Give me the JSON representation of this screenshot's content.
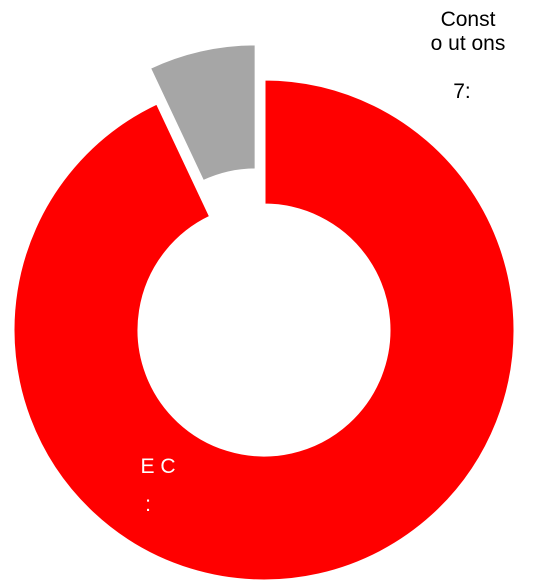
{
  "chart_data": {
    "type": "donut",
    "categories": [
      "E C",
      "Const\no ut ons"
    ],
    "values": [
      93,
      7
    ],
    "value_labels": [
      ":",
      "7:"
    ],
    "colors": [
      "#ff0000",
      "#a6a6a6"
    ],
    "exploded": [
      false,
      true
    ]
  }
}
